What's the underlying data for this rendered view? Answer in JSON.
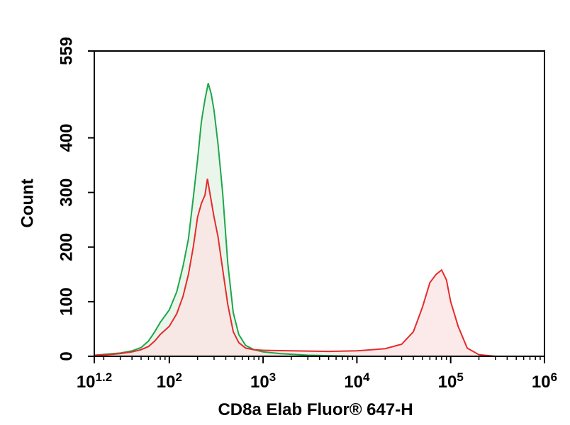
{
  "chart_data": {
    "type": "area",
    "xlabel": "CD8a Elab Fluor® 647-H",
    "ylabel": "Count",
    "x_scale": "log",
    "xlim": [
      15.85,
      1000000
    ],
    "ylim": [
      0,
      559
    ],
    "x_ticks": [
      {
        "base": "10",
        "exp": "1.2",
        "value": 15.85
      },
      {
        "base": "10",
        "exp": "2",
        "value": 100
      },
      {
        "base": "10",
        "exp": "3",
        "value": 1000
      },
      {
        "base": "10",
        "exp": "4",
        "value": 10000
      },
      {
        "base": "10",
        "exp": "5",
        "value": 100000
      },
      {
        "base": "10",
        "exp": "6",
        "value": 1000000
      }
    ],
    "y_ticks": [
      {
        "label": "0",
        "value": 0
      },
      {
        "label": "100",
        "value": 100
      },
      {
        "label": "200",
        "value": 200
      },
      {
        "label": "300",
        "value": 300
      },
      {
        "label": "400",
        "value": 400
      },
      {
        "label": "559",
        "value": 559
      }
    ],
    "series": [
      {
        "color": "#1fa64a",
        "fill": "#e3f3e5",
        "points": [
          [
            16,
            2
          ],
          [
            22,
            4
          ],
          [
            30,
            6
          ],
          [
            40,
            10
          ],
          [
            50,
            16
          ],
          [
            60,
            28
          ],
          [
            70,
            45
          ],
          [
            80,
            62
          ],
          [
            100,
            85
          ],
          [
            120,
            118
          ],
          [
            140,
            165
          ],
          [
            160,
            215
          ],
          [
            180,
            290
          ],
          [
            200,
            360
          ],
          [
            220,
            430
          ],
          [
            240,
            470
          ],
          [
            260,
            500
          ],
          [
            280,
            480
          ],
          [
            300,
            450
          ],
          [
            330,
            390
          ],
          [
            370,
            300
          ],
          [
            420,
            170
          ],
          [
            480,
            80
          ],
          [
            550,
            40
          ],
          [
            650,
            20
          ],
          [
            800,
            12
          ],
          [
            1000,
            8
          ],
          [
            1500,
            5
          ],
          [
            3000,
            2
          ],
          [
            10000,
            0
          ]
        ]
      },
      {
        "color": "#e52b2b",
        "fill": "#fbe3e3",
        "points": [
          [
            16,
            2
          ],
          [
            22,
            3
          ],
          [
            30,
            5
          ],
          [
            40,
            8
          ],
          [
            50,
            12
          ],
          [
            60,
            18
          ],
          [
            70,
            28
          ],
          [
            80,
            40
          ],
          [
            100,
            55
          ],
          [
            120,
            78
          ],
          [
            140,
            110
          ],
          [
            160,
            150
          ],
          [
            180,
            200
          ],
          [
            200,
            255
          ],
          [
            220,
            280
          ],
          [
            240,
            295
          ],
          [
            255,
            325
          ],
          [
            270,
            300
          ],
          [
            300,
            255
          ],
          [
            330,
            220
          ],
          [
            370,
            160
          ],
          [
            420,
            95
          ],
          [
            480,
            45
          ],
          [
            550,
            25
          ],
          [
            650,
            15
          ],
          [
            800,
            12
          ],
          [
            1000,
            11
          ],
          [
            2000,
            10
          ],
          [
            5000,
            9
          ],
          [
            10000,
            10
          ],
          [
            20000,
            14
          ],
          [
            30000,
            22
          ],
          [
            40000,
            45
          ],
          [
            50000,
            90
          ],
          [
            60000,
            135
          ],
          [
            70000,
            150
          ],
          [
            80000,
            158
          ],
          [
            90000,
            140
          ],
          [
            100000,
            100
          ],
          [
            120000,
            55
          ],
          [
            150000,
            15
          ],
          [
            200000,
            3
          ],
          [
            300000,
            0
          ]
        ]
      }
    ]
  }
}
